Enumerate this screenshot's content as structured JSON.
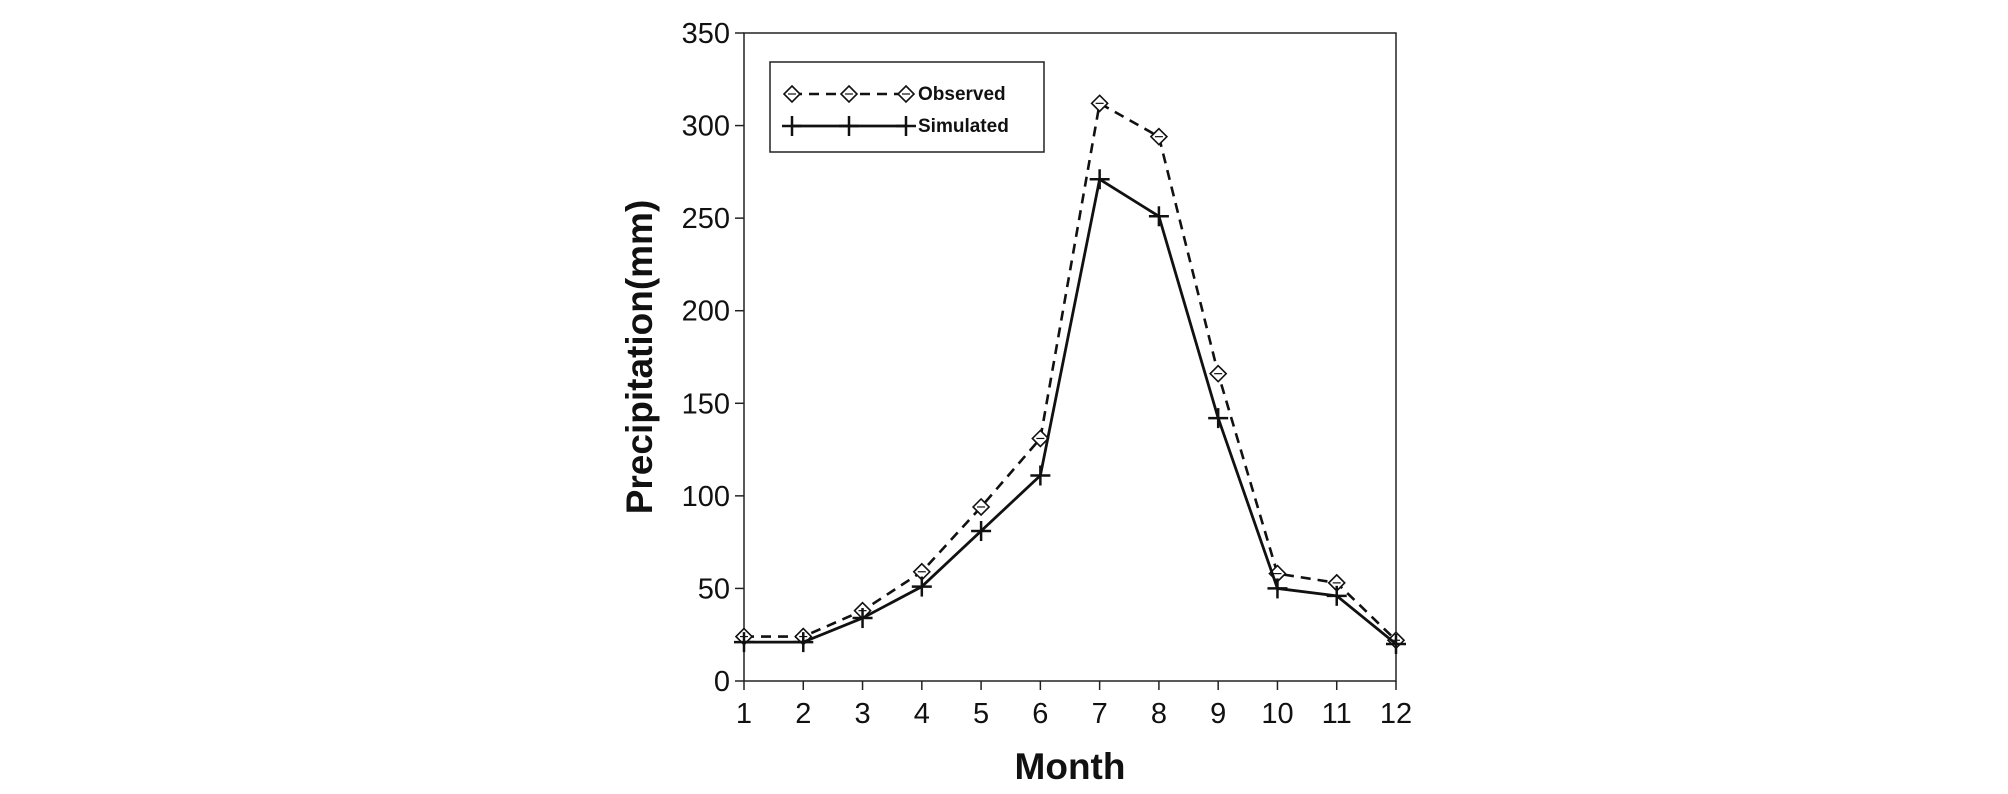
{
  "chart_data": {
    "type": "line",
    "title": "",
    "xlabel": "Month",
    "ylabel": "Precipitation(mm)",
    "x": [
      1,
      2,
      3,
      4,
      5,
      6,
      7,
      8,
      9,
      10,
      11,
      12
    ],
    "x_tick_labels": [
      "1",
      "2",
      "3",
      "4",
      "5",
      "6",
      "7",
      "8",
      "9",
      "10",
      "11",
      "12"
    ],
    "xlim": [
      1,
      12
    ],
    "ylim": [
      0,
      350
    ],
    "y_ticks": [
      0,
      50,
      100,
      150,
      200,
      250,
      300,
      350
    ],
    "y_tick_labels": [
      "0",
      "50",
      "100",
      "150",
      "200",
      "250",
      "300",
      "350"
    ],
    "grid": false,
    "legend_position": "top-left",
    "series": [
      {
        "name": "Observed",
        "values": [
          24,
          24,
          38,
          59,
          94,
          131,
          312,
          294,
          166,
          58,
          53,
          22
        ],
        "line_style": "dashed",
        "marker": "diamond",
        "color": "#111111"
      },
      {
        "name": "Simulated",
        "values": [
          21,
          21,
          34,
          51,
          81,
          111,
          271,
          251,
          142,
          50,
          46,
          20
        ],
        "line_style": "solid",
        "marker": "plus",
        "color": "#111111"
      }
    ]
  }
}
